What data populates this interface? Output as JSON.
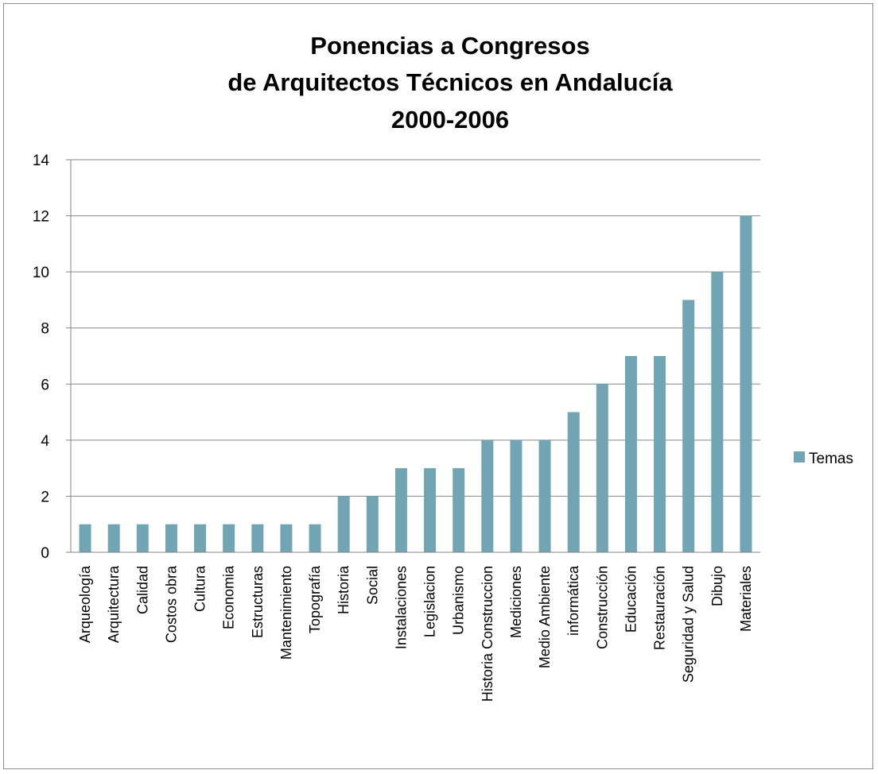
{
  "chart_data": {
    "type": "bar",
    "title_lines": [
      "Ponencias a Congresos",
      "de Arquitectos Técnicos en Andalucía",
      "2000-2006"
    ],
    "categories": [
      "Arqueología",
      "Arquitectura",
      "Calidad",
      "Costos obra",
      "Cultura",
      "Economia",
      "Estructuras",
      "Mantenimiento",
      "Topografía",
      "Historia",
      "Social",
      "Instalaciones",
      "Legislacion",
      "Urbanismo",
      "Historia Construccion",
      "Mediciones",
      "Medio Ambiente",
      "informática",
      "Construcción",
      "Educación",
      "Restauración",
      "Seguridad y Salud",
      "Dibujo",
      "Materiales"
    ],
    "series": [
      {
        "name": "Temas",
        "color": "#72a5b4",
        "values": [
          1,
          1,
          1,
          1,
          1,
          1,
          1,
          1,
          1,
          2,
          2,
          3,
          3,
          3,
          4,
          4,
          4,
          5,
          6,
          7,
          7,
          9,
          10,
          12
        ]
      }
    ],
    "ylim": [
      0,
      14
    ],
    "yticks": [
      "0",
      "2",
      "4",
      "6",
      "8",
      "10",
      "12",
      "14"
    ],
    "grid": true,
    "legend_position": "right"
  }
}
